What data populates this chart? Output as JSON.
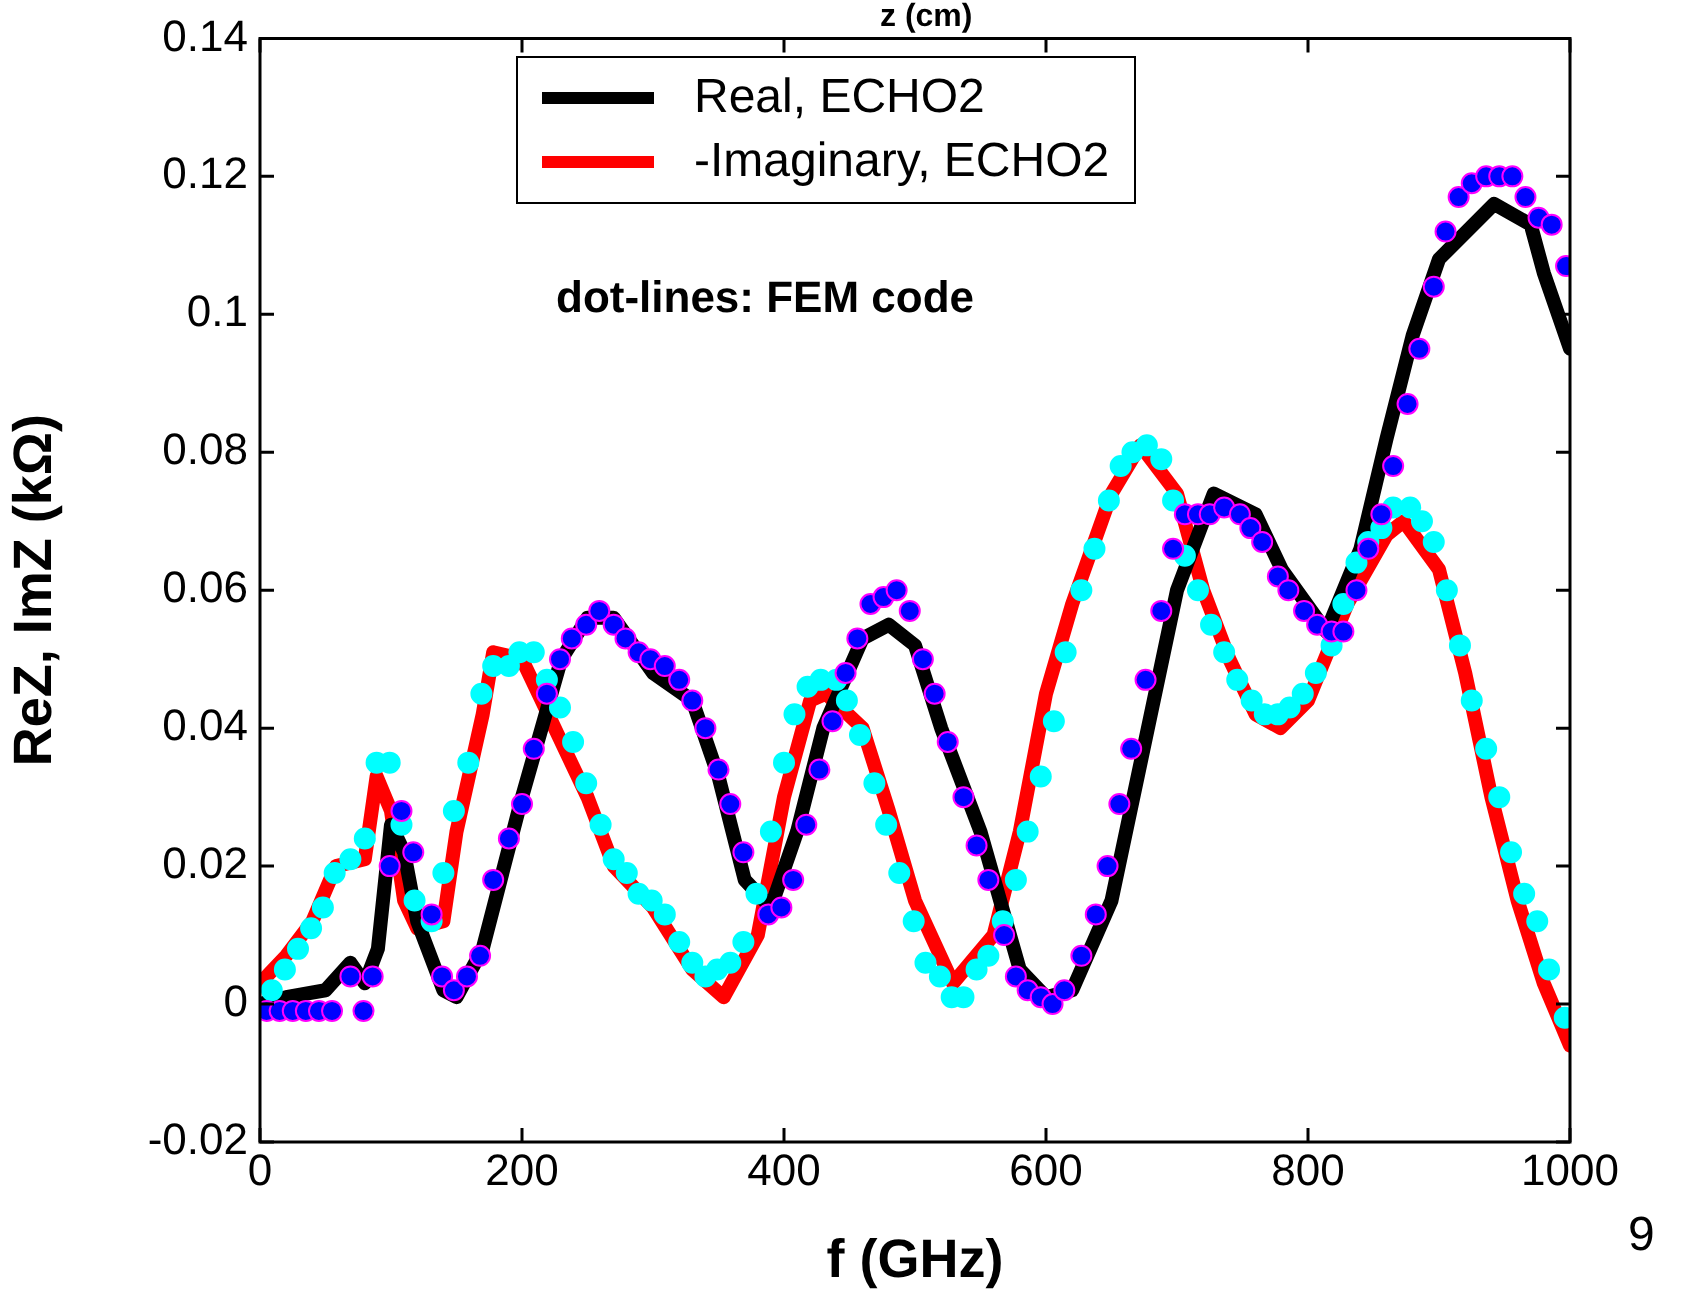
{
  "chart_data": {
    "type": "line",
    "xlabel": "f (GHz)",
    "ylabel": "ReZ, ImZ (kΩ)",
    "annotations": [
      "dot-lines: FEM code",
      "z (cm)",
      "9"
    ],
    "xlim": [
      0,
      1000
    ],
    "xticks": [
      0,
      200,
      400,
      600,
      800,
      1000
    ],
    "ylim": [
      -0.02,
      0.14
    ],
    "yticks": [
      -0.02,
      0,
      0.02,
      0.04,
      0.06,
      0.08,
      0.1,
      0.12,
      0.14
    ],
    "grid": false,
    "legend": "top",
    "line_style": "solid",
    "series": [
      {
        "name": "Real, ECHO2",
        "marker": "none",
        "color": "#000000",
        "x": [
          0,
          20,
          50,
          69,
          80,
          90,
          100,
          110,
          120,
          140,
          150,
          170,
          200,
          230,
          250,
          270,
          300,
          330,
          350,
          370,
          390,
          410,
          430,
          460,
          480,
          500,
          520,
          550,
          580,
          600,
          620,
          650,
          680,
          700,
          728,
          760,
          780,
          814,
          840,
          860,
          880,
          900,
          942,
          970,
          980,
          1000
        ],
        "values": [
          0,
          0.001,
          0.002,
          0.006,
          0.003,
          0.008,
          0.026,
          0.022,
          0.012,
          0.002,
          0.001,
          0.008,
          0.03,
          0.05,
          0.056,
          0.056,
          0.048,
          0.044,
          0.033,
          0.018,
          0.014,
          0.025,
          0.04,
          0.053,
          0.055,
          0.052,
          0.04,
          0.025,
          0.005,
          0.001,
          0.002,
          0.015,
          0.042,
          0.06,
          0.074,
          0.071,
          0.063,
          0.054,
          0.066,
          0.082,
          0.097,
          0.108,
          0.116,
          0.113,
          0.106,
          0.095
        ]
      },
      {
        "name": "-Imaginary, ECHO2",
        "marker": "none",
        "color": "#ff0000",
        "x": [
          0,
          20,
          40,
          58,
          80,
          89,
          100,
          110,
          120,
          140,
          150,
          170,
          178,
          200,
          220,
          250,
          270,
          300,
          330,
          354,
          380,
          400,
          420,
          432,
          460,
          480,
          500,
          529,
          560,
          580,
          600,
          620,
          650,
          672,
          700,
          720,
          740,
          760,
          779,
          800,
          830,
          860,
          873,
          900,
          920,
          940,
          960,
          980,
          1000
        ],
        "values": [
          0.003,
          0.007,
          0.012,
          0.02,
          0.021,
          0.033,
          0.028,
          0.015,
          0.011,
          0.012,
          0.025,
          0.042,
          0.051,
          0.05,
          0.042,
          0.03,
          0.02,
          0.014,
          0.005,
          0.001,
          0.01,
          0.03,
          0.044,
          0.045,
          0.04,
          0.028,
          0.015,
          0.003,
          0.01,
          0.025,
          0.045,
          0.058,
          0.074,
          0.081,
          0.074,
          0.06,
          0.05,
          0.042,
          0.04,
          0.044,
          0.058,
          0.068,
          0.07,
          0.063,
          0.048,
          0.03,
          0.015,
          0.003,
          -0.006
        ]
      },
      {
        "type": "scatter",
        "marker": "circle",
        "color": "#0000ff",
        "x": [
          5,
          15,
          25,
          35,
          45,
          55,
          69,
          79,
          86,
          99,
          108,
          117,
          131,
          139,
          148,
          158,
          168,
          178,
          190,
          200,
          209,
          219,
          229,
          238,
          249,
          259,
          270,
          279,
          289,
          298,
          309,
          320,
          330,
          340,
          350,
          359,
          369,
          388,
          398,
          407,
          417,
          427,
          437,
          447,
          456,
          466,
          476,
          486,
          496,
          506,
          515,
          525,
          537,
          547,
          556,
          568,
          577,
          586,
          596,
          605,
          614,
          627,
          638,
          647,
          656,
          665,
          676,
          688,
          697,
          706,
          716,
          725,
          736,
          748,
          756,
          765,
          777,
          785,
          797,
          807,
          818,
          827,
          837,
          846,
          856,
          865,
          876,
          885,
          896,
          905,
          915,
          925,
          936,
          946,
          956,
          966,
          976,
          986,
          997
        ],
        "values": [
          -0.001,
          -0.001,
          -0.001,
          -0.001,
          -0.001,
          -0.001,
          0.004,
          -0.001,
          0.004,
          0.02,
          0.028,
          0.022,
          0.013,
          0.004,
          0.002,
          0.004,
          0.007,
          0.018,
          0.024,
          0.029,
          0.037,
          0.045,
          0.05,
          0.053,
          0.055,
          0.057,
          0.055,
          0.053,
          0.051,
          0.05,
          0.049,
          0.047,
          0.044,
          0.04,
          0.034,
          0.029,
          0.022,
          0.013,
          0.014,
          0.018,
          0.026,
          0.034,
          0.041,
          0.048,
          0.053,
          0.058,
          0.059,
          0.06,
          0.057,
          0.05,
          0.045,
          0.038,
          0.03,
          0.023,
          0.018,
          0.01,
          0.004,
          0.002,
          0.001,
          0,
          0.002,
          0.007,
          0.013,
          0.02,
          0.029,
          0.037,
          0.047,
          0.057,
          0.066,
          0.071,
          0.071,
          0.071,
          0.072,
          0.071,
          0.069,
          0.067,
          0.062,
          0.06,
          0.057,
          0.055,
          0.054,
          0.054,
          0.06,
          0.066,
          0.071,
          0.078,
          0.087,
          0.095,
          0.104,
          0.112,
          0.117,
          0.119,
          0.12,
          0.12,
          0.12,
          0.117,
          0.114,
          0.113,
          0.107
        ]
      },
      {
        "type": "scatter",
        "marker": "circle",
        "color": "#00ffff",
        "x": [
          9,
          19,
          29,
          39,
          48,
          57,
          69,
          80,
          89,
          99,
          108,
          118,
          131,
          140,
          148,
          159,
          169,
          178,
          190,
          198,
          209,
          219,
          229,
          239,
          249,
          260,
          270,
          280,
          289,
          299,
          309,
          320,
          330,
          340,
          349,
          359,
          369,
          379,
          390,
          400,
          408,
          418,
          428,
          440,
          448,
          458,
          469,
          478,
          488,
          499,
          508,
          519,
          528,
          537,
          547,
          556,
          567,
          577,
          586,
          596,
          606,
          615,
          627,
          637,
          648,
          657,
          666,
          677,
          688,
          697,
          706,
          716,
          726,
          736,
          746,
          757,
          767,
          777,
          786,
          796,
          806,
          818,
          827,
          837,
          846,
          856,
          865,
          878,
          887,
          896,
          906,
          916,
          925,
          936,
          946,
          955,
          965,
          975,
          984,
          996
        ],
        "values": [
          0.002,
          0.005,
          0.008,
          0.011,
          0.014,
          0.019,
          0.021,
          0.024,
          0.035,
          0.035,
          0.026,
          0.015,
          0.012,
          0.019,
          0.028,
          0.035,
          0.045,
          0.049,
          0.049,
          0.051,
          0.051,
          0.047,
          0.043,
          0.038,
          0.032,
          0.026,
          0.021,
          0.019,
          0.016,
          0.015,
          0.013,
          0.009,
          0.006,
          0.004,
          0.005,
          0.006,
          0.009,
          0.016,
          0.025,
          0.035,
          0.042,
          0.046,
          0.047,
          0.047,
          0.044,
          0.039,
          0.032,
          0.026,
          0.019,
          0.012,
          0.006,
          0.004,
          0.001,
          0.001,
          0.005,
          0.007,
          0.012,
          0.018,
          0.025,
          0.033,
          0.041,
          0.051,
          0.06,
          0.066,
          0.073,
          0.078,
          0.08,
          0.081,
          0.079,
          0.073,
          0.065,
          0.06,
          0.055,
          0.051,
          0.047,
          0.044,
          0.042,
          0.042,
          0.043,
          0.045,
          0.048,
          0.052,
          0.058,
          0.064,
          0.067,
          0.069,
          0.072,
          0.072,
          0.07,
          0.067,
          0.06,
          0.052,
          0.044,
          0.037,
          0.03,
          0.022,
          0.016,
          0.012,
          0.005,
          -0.002
        ]
      }
    ]
  }
}
